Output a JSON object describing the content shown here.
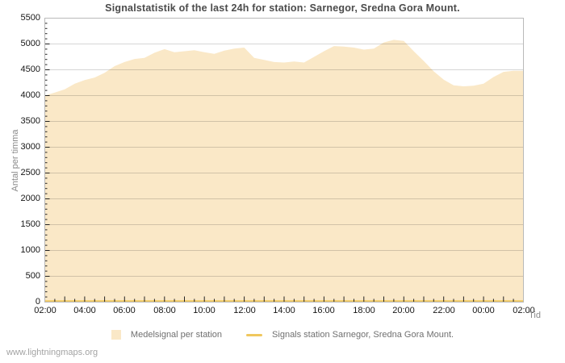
{
  "page": {
    "title": "Signalstatistik of the last 24h for station: Sarnegor, Sredna Gora Mount.",
    "watermark": "www.lightningmaps.org"
  },
  "legend": {
    "area_label": "Medelsignal per station",
    "line_label": "Signals station Sarnegor, Sredna Gora Mount."
  },
  "colors": {
    "area_fill": "#fae8c7",
    "signal_line": "#f0c75e",
    "gridline": "rgba(0,0,0,0.16)",
    "plot_border": "#b9b9b9",
    "tick": "#222222"
  },
  "chart_data": {
    "type": "area",
    "title": "Signalstatistik of the last 24h for station: Sarnegor, Sredna Gora Mount.",
    "xlabel": "Tid",
    "ylabel": "Antal per timma",
    "ylim": [
      0,
      5500
    ],
    "y_tick_step": 500,
    "y_minor_step": 100,
    "grid": true,
    "legend_position": "bottom",
    "y_tick_labels": [
      "0",
      "500",
      "1000",
      "1500",
      "2000",
      "2500",
      "3000",
      "3500",
      "4000",
      "4500",
      "5000",
      "5500"
    ],
    "x_tick_labels": [
      "02:00",
      "04:00",
      "06:00",
      "08:00",
      "10:00",
      "12:00",
      "14:00",
      "16:00",
      "18:00",
      "20:00",
      "22:00",
      "00:00",
      "02:00"
    ],
    "x_start_hour": 2,
    "x_end_hour": 26,
    "x_label_every_hours": 2,
    "x_minor_tick_minutes": 30,
    "sample_interval_minutes": 30,
    "sample_times": [
      "02:00",
      "02:30",
      "03:00",
      "03:30",
      "04:00",
      "04:30",
      "05:00",
      "05:30",
      "06:00",
      "06:30",
      "07:00",
      "07:30",
      "08:00",
      "08:30",
      "09:00",
      "09:30",
      "10:00",
      "10:30",
      "11:00",
      "11:30",
      "12:00",
      "12:30",
      "13:00",
      "13:30",
      "14:00",
      "14:30",
      "15:00",
      "15:30",
      "16:00",
      "16:30",
      "17:00",
      "17:30",
      "18:00",
      "18:30",
      "19:00",
      "19:30",
      "20:00",
      "20:30",
      "21:00",
      "21:30",
      "22:00",
      "22:30",
      "23:00",
      "23:30",
      "00:00",
      "00:30",
      "01:00",
      "01:30",
      "02:00"
    ],
    "series": [
      {
        "name": "Medelsignal per station",
        "style": "area",
        "color": "#fae8c7",
        "values": [
          4000,
          4060,
          4120,
          4230,
          4300,
          4350,
          4440,
          4570,
          4650,
          4710,
          4730,
          4830,
          4900,
          4840,
          4860,
          4880,
          4840,
          4810,
          4870,
          4910,
          4930,
          4730,
          4690,
          4650,
          4640,
          4660,
          4640,
          4750,
          4860,
          4960,
          4950,
          4930,
          4890,
          4910,
          5030,
          5080,
          5060,
          4860,
          4670,
          4470,
          4310,
          4200,
          4180,
          4190,
          4230,
          4360,
          4460,
          4480,
          4480
        ]
      },
      {
        "name": "Signals station Sarnegor, Sredna Gora Mount.",
        "style": "line",
        "color": "#f0c75e",
        "constant_value": 20
      }
    ]
  }
}
